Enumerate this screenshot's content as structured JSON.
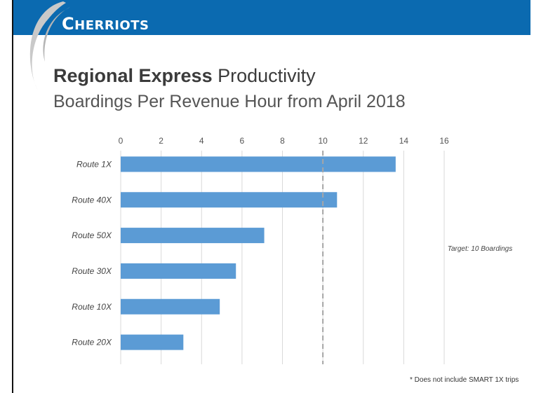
{
  "header": {
    "logo_first": "C",
    "logo_rest": "HERRIOTS",
    "bar_color": "#0b6ab0"
  },
  "title": {
    "bold": "Regional Express",
    "rest": " Productivity"
  },
  "subtitle": "Boardings Per Revenue Hour from April 2018",
  "footnote": "* Does not include SMART 1X trips",
  "chart_data": {
    "type": "bar",
    "orientation": "horizontal",
    "categories": [
      "Route 1X",
      "Route 40X",
      "Route 50X",
      "Route 30X",
      "Route 10X",
      "Route 20X"
    ],
    "values": [
      13.6,
      10.7,
      7.1,
      5.7,
      4.9,
      3.1
    ],
    "xlim": [
      0,
      16
    ],
    "xticks": [
      0,
      2,
      4,
      6,
      8,
      10,
      12,
      14,
      16
    ],
    "xlabel": "",
    "ylabel": "",
    "grid": true,
    "target_value": 10,
    "annotation": "Target: 10 Boardings",
    "bar_color": "#5b9bd5"
  }
}
